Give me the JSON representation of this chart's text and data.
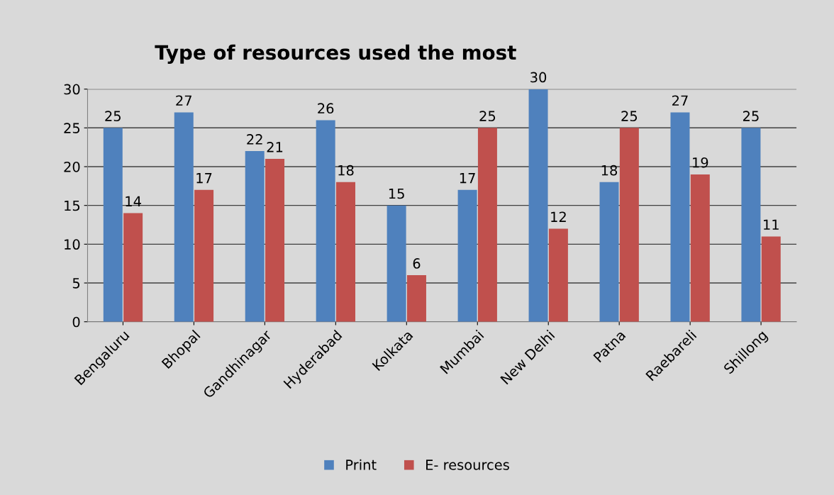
{
  "chart_data": {
    "type": "bar",
    "title": "Type of resources used the most",
    "categories": [
      "Bengaluru",
      "Bhopal",
      "Gandhinagar",
      "Hyderabad",
      "Kolkata",
      "Mumbai",
      "New Delhi",
      "Patna",
      "Raebareli",
      "Shillong"
    ],
    "series": [
      {
        "name": "Print",
        "color": "#4f81bd",
        "values": [
          25,
          27,
          22,
          26,
          15,
          17,
          30,
          18,
          27,
          25
        ]
      },
      {
        "name": "E- resources",
        "color": "#c0504d",
        "values": [
          14,
          17,
          21,
          18,
          6,
          25,
          12,
          25,
          19,
          11
        ]
      }
    ],
    "ylim": [
      0,
      30
    ],
    "yticks": [
      0,
      5,
      10,
      15,
      20,
      25,
      30
    ],
    "grid": "y",
    "legend": "bottom",
    "data_labels": true
  }
}
